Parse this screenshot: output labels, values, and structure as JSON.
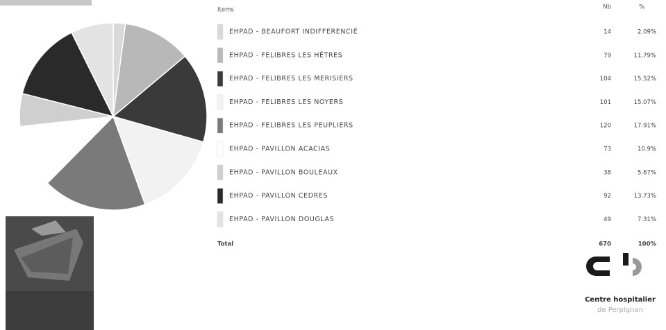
{
  "header": {
    "items": "Items",
    "nb": "Nb",
    "pct": "%"
  },
  "table": {
    "rows": [
      {
        "label": "EHPAD - BEAUFORT INDIFFERENCIÉ",
        "nb": 14,
        "pct": "2.09%",
        "color": "#d9d9d9"
      },
      {
        "label": "EHPAD - FELIBRES LES HÊTRES",
        "nb": 79,
        "pct": "11.79%",
        "color": "#b8b8b8"
      },
      {
        "label": "EHPAD - FELIBRES LES MERISIERS",
        "nb": 104,
        "pct": "15.52%",
        "color": "#3a3a3a"
      },
      {
        "label": "EHPAD - FELIBRES LES NOYERS",
        "nb": 101,
        "pct": "15.07%",
        "color": "#f2f2f2"
      },
      {
        "label": "EHPAD - FELIBRES LES PEUPLIERS",
        "nb": 120,
        "pct": "17.91%",
        "color": "#7a7a7a"
      },
      {
        "label": "EHPAD - PAVILLON ACACIAS",
        "nb": 73,
        "pct": "10.9%",
        "color": "#ffffff"
      },
      {
        "label": "EHPAD - PAVILLON BOULEAUX",
        "nb": 38,
        "pct": "5.67%",
        "color": "#cfcfcf"
      },
      {
        "label": "EHPAD - PAVILLON CEDRES",
        "nb": 92,
        "pct": "13.73%",
        "color": "#2a2a2a"
      },
      {
        "label": "EHPAD - PAVILLON DOUGLAS",
        "nb": 49,
        "pct": "7.31%",
        "color": "#e3e3e3"
      }
    ],
    "total": {
      "label": "Total",
      "nb": 670,
      "pct": "100%"
    }
  },
  "logo": {
    "line1": "Centre hospitalier",
    "line2": "de Perpignan"
  }
}
